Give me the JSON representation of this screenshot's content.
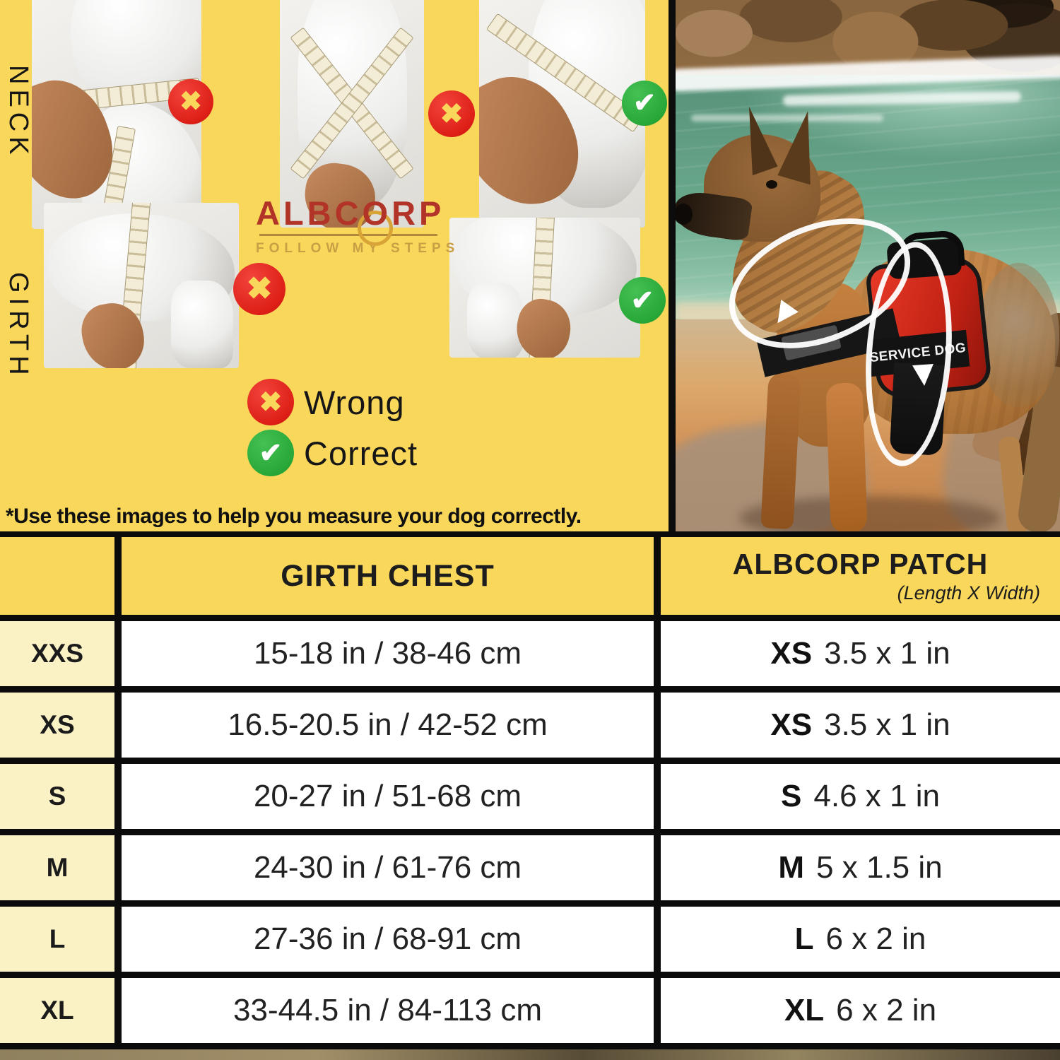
{
  "colors": {
    "panel_yellow": "#F8D75A",
    "size_column_cream": "#FAF1C5",
    "wrong_red": "#E3261D",
    "correct_green": "#2FAC3F",
    "brand_red": "#B23327",
    "brand_gold": "#C99F45",
    "border_black": "#0B0B0B",
    "harness_red": "#D42B1F"
  },
  "panel": {
    "neck_label": "NECK",
    "girth_label": "GIRTH",
    "logo": {
      "brand": "ALBCORP",
      "tagline": "FOLLOW MY STEPS"
    },
    "legend": {
      "wrong": "Wrong",
      "correct": "Correct"
    },
    "note": "*Use these images to help you measure your dog correctly."
  },
  "photo": {
    "harness_patch": "SERVICE DOG"
  },
  "table": {
    "header": {
      "size": "",
      "girth": "GIRTH CHEST",
      "patch": "ALBCORP PATCH",
      "patch_sub": "(Length X Width)"
    },
    "rows": [
      {
        "size": "XXS",
        "girth": "15-18 in / 38-46 cm",
        "patch_size": "XS",
        "patch_dim": "3.5 x 1 in"
      },
      {
        "size": "XS",
        "girth": "16.5-20.5 in / 42-52 cm",
        "patch_size": "XS",
        "patch_dim": "3.5 x 1 in"
      },
      {
        "size": "S",
        "girth": "20-27 in / 51-68 cm",
        "patch_size": "S",
        "patch_dim": "4.6 x 1 in"
      },
      {
        "size": "M",
        "girth": "24-30 in / 61-76 cm",
        "patch_size": "M",
        "patch_dim": "5 x 1.5 in"
      },
      {
        "size": "L",
        "girth": "27-36 in / 68-91 cm",
        "patch_size": "L",
        "patch_dim": "6 x 2 in"
      },
      {
        "size": "XL",
        "girth": "33-44.5 in / 84-113 cm",
        "patch_size": "XL",
        "patch_dim": "6 x 2 in"
      }
    ]
  }
}
